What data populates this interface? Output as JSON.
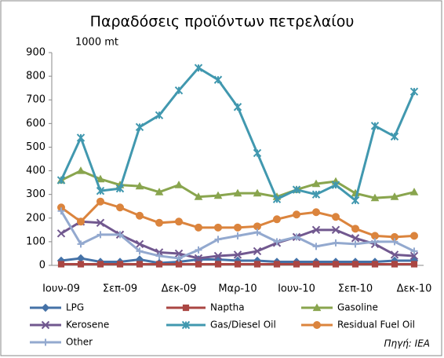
{
  "chart_data": {
    "type": "line",
    "title": "Παραδόσεις προϊόντων πετρελαίου",
    "y_label": "1000 mt",
    "source": "Πηγή: IEA",
    "categories": [
      "Ιουν-09",
      null,
      null,
      "Σεπ-09",
      null,
      null,
      "Δεκ-09",
      null,
      null,
      "Μαρ-10",
      null,
      null,
      "Ιουν-10",
      null,
      null,
      "Σεπ-10",
      null,
      null,
      "Δεκ-10"
    ],
    "ylim": [
      0,
      900
    ],
    "yticks": [
      0,
      100,
      200,
      300,
      400,
      500,
      600,
      700,
      800,
      900
    ],
    "grid": false,
    "series": [
      {
        "name": "LPG",
        "color": "#4572a7",
        "marker": "diamond",
        "values": [
          20,
          30,
          15,
          15,
          25,
          10,
          15,
          25,
          25,
          20,
          20,
          15,
          15,
          15,
          15,
          15,
          15,
          20,
          20
        ]
      },
      {
        "name": "Naptha",
        "color": "#aa4643",
        "marker": "square",
        "values": [
          5,
          5,
          5,
          5,
          5,
          5,
          5,
          5,
          5,
          5,
          5,
          5,
          5,
          5,
          5,
          5,
          5,
          5,
          5
        ]
      },
      {
        "name": "Gasoline",
        "color": "#89a54e",
        "marker": "triangle",
        "values": [
          360,
          400,
          365,
          340,
          335,
          310,
          340,
          290,
          295,
          305,
          305,
          290,
          320,
          345,
          355,
          305,
          285,
          290,
          310
        ]
      },
      {
        "name": "Kerosene",
        "color": "#71588f",
        "marker": "x",
        "values": [
          135,
          185,
          180,
          130,
          90,
          55,
          50,
          30,
          40,
          45,
          60,
          95,
          120,
          150,
          150,
          115,
          90,
          45,
          40
        ]
      },
      {
        "name": "Gas/Diesel Oil",
        "color": "#4198af",
        "marker": "star",
        "values": [
          360,
          540,
          315,
          325,
          585,
          635,
          740,
          835,
          785,
          670,
          475,
          280,
          320,
          300,
          340,
          275,
          590,
          545,
          735
        ]
      },
      {
        "name": "Residual Fuel Oil",
        "color": "#db843d",
        "marker": "circle",
        "values": [
          245,
          185,
          270,
          245,
          210,
          180,
          185,
          160,
          160,
          160,
          165,
          195,
          215,
          225,
          205,
          155,
          125,
          120,
          125
        ]
      },
      {
        "name": "Other",
        "color": "#93a9cf",
        "marker": "plus",
        "values": [
          230,
          90,
          130,
          130,
          60,
          40,
          30,
          65,
          110,
          125,
          140,
          100,
          120,
          80,
          95,
          90,
          100,
          100,
          60
        ]
      }
    ]
  }
}
